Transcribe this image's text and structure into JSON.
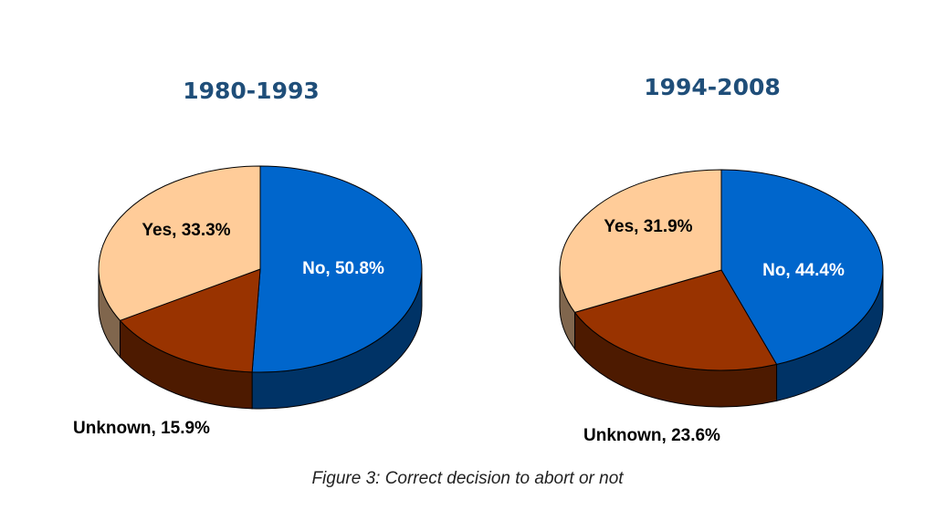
{
  "colors": {
    "no": "#0066cc",
    "yes": "#ffcc99",
    "unknown": "#993300",
    "title": "#1f4e79"
  },
  "chart_data": [
    {
      "type": "pie",
      "title": "1980-1993",
      "slices": [
        {
          "name": "No",
          "value": 50.8,
          "label": "No, 50.8%",
          "color": "#0066cc"
        },
        {
          "name": "Unknown",
          "value": 15.9,
          "label": "Unknown, 15.9%",
          "color": "#993300"
        },
        {
          "name": "Yes",
          "value": 33.3,
          "label": "Yes, 33.3%",
          "color": "#ffcc99"
        }
      ]
    },
    {
      "type": "pie",
      "title": "1994-2008",
      "slices": [
        {
          "name": "No",
          "value": 44.4,
          "label": "No, 44.4%",
          "color": "#0066cc"
        },
        {
          "name": "Unknown",
          "value": 23.6,
          "label": "Unknown, 23.6%",
          "color": "#993300"
        },
        {
          "name": "Yes",
          "value": 31.9,
          "label": "Yes, 31.9%",
          "color": "#ffcc99"
        }
      ]
    }
  ],
  "caption": "Figure 3: Correct decision to abort or not"
}
